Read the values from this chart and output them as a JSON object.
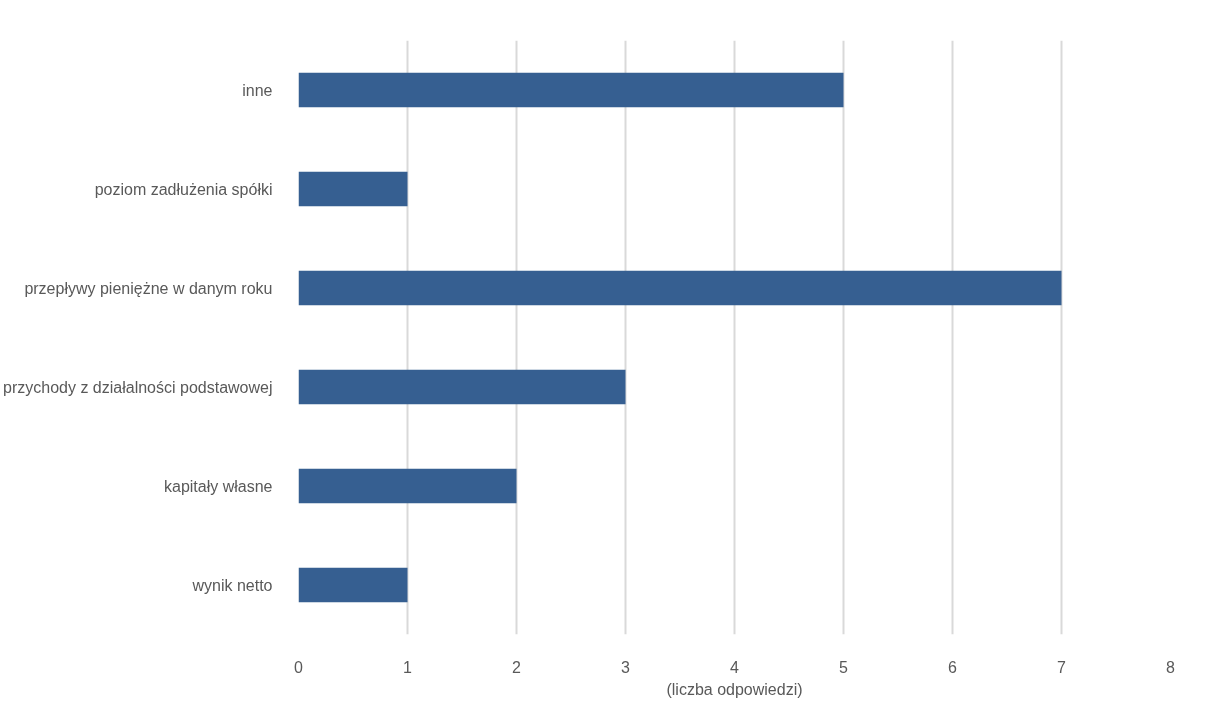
{
  "chart_data": {
    "type": "bar",
    "orientation": "horizontal",
    "xlabel": "(liczba odpowiedzi)",
    "categories": [
      "inne",
      "poziom zadłużenia spółki",
      "przepływy pieniężne w danym roku",
      "przychody z działalności podstawowej",
      "kapitały własne",
      "wynik netto"
    ],
    "values": [
      5,
      1,
      7,
      3,
      2,
      1
    ],
    "color": "#365f91",
    "xlim": [
      0,
      8
    ],
    "xticks": [
      0,
      1,
      2,
      3,
      4,
      5,
      6,
      7,
      8
    ],
    "grid": "x"
  }
}
